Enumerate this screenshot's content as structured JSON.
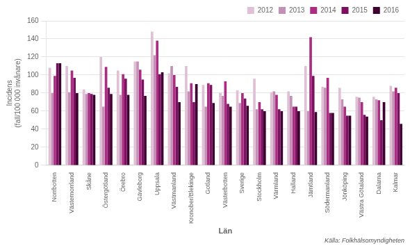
{
  "chart_data": {
    "type": "bar",
    "xlabel": "Län",
    "ylabel": "Incidens\n(fall/100 000 invånare)",
    "annotations": [
      "Källa: Folkhälsomyndigheten"
    ],
    "categories": [
      "Norrbotten",
      "Västernorrland",
      "Skåne",
      "Östergötland",
      "Örebro",
      "Gävleborg",
      "Uppsala",
      "Västmanland",
      "Kronober/Blekinge",
      "Gotland",
      "Västerbotten",
      "Sverige",
      "Stockholm",
      "Värmland",
      "Halland",
      "Jämtland",
      "Södermanland",
      "Jönköping",
      "Västra Götaland",
      "Dalarna",
      "Kalmar"
    ],
    "series": [
      {
        "name": "2012",
        "color": "#dfc0d5",
        "values": [
          108,
          110,
          84,
          120,
          105,
          115,
          148,
          102,
          110,
          89,
          80,
          83,
          96,
          81,
          82,
          110,
          87,
          86,
          76,
          76,
          88
        ]
      },
      {
        "name": "2013",
        "color": "#c490b8",
        "values": [
          80,
          81,
          79,
          65,
          78,
          115,
          122,
          110,
          82,
          65,
          77,
          69,
          62,
          82,
          77,
          60,
          86,
          73,
          75,
          73,
          82
        ]
      },
      {
        "name": "2014",
        "color": "#aa2d82",
        "values": [
          99,
          105,
          80,
          109,
          101,
          106,
          138,
          100,
          91,
          91,
          93,
          80,
          70,
          78,
          65,
          142,
          97,
          65,
          70,
          72,
          86
        ]
      },
      {
        "name": "2015",
        "color": "#7a1060",
        "values": [
          113,
          97,
          79,
          86,
          96,
          95,
          101,
          87,
          70,
          89,
          68,
          74,
          62,
          62,
          65,
          99,
          58,
          55,
          56,
          50,
          80
        ]
      },
      {
        "name": "2016",
        "color": "#3d0030",
        "values": [
          113,
          80,
          78,
          79,
          78,
          77,
          103,
          70,
          90,
          69,
          65,
          66,
          60,
          60,
          60,
          59,
          58,
          55,
          54,
          70,
          46
        ]
      }
    ],
    "ylim": [
      0,
      160
    ],
    "yticks": [
      0,
      20,
      40,
      60,
      80,
      100,
      120,
      140,
      160
    ],
    "grid": true,
    "legend": "upper right"
  }
}
